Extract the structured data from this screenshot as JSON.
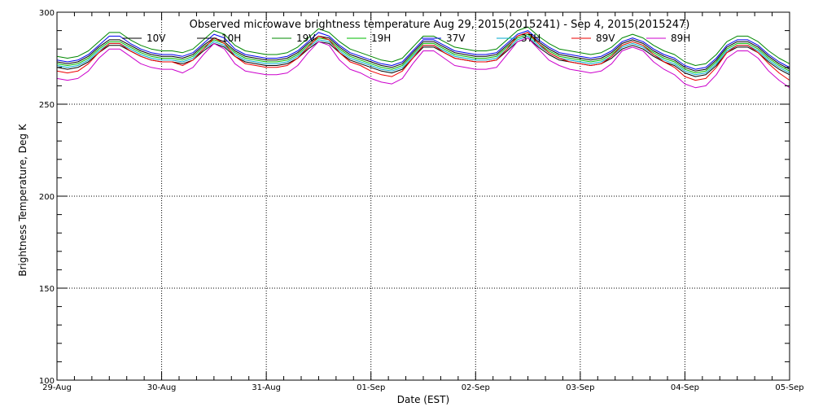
{
  "chart_data": {
    "type": "line",
    "title": "Observed microwave brightness temperature Aug 29, 2015(2015241) - Sep  4, 2015(2015247)",
    "xlabel": "Date (EST)",
    "ylabel": "Brightness Temperature, Deg K",
    "ylim": [
      100,
      300
    ],
    "xlim": [
      0,
      7
    ],
    "x_unit": "days from 29-Aug",
    "yticks": [
      100,
      150,
      200,
      250,
      300
    ],
    "xticks": [
      {
        "x": 0,
        "label": "29-Aug"
      },
      {
        "x": 1,
        "label": "30-Aug"
      },
      {
        "x": 2,
        "label": "31-Aug"
      },
      {
        "x": 3,
        "label": "01-Sep"
      },
      {
        "x": 4,
        "label": "02-Sep"
      },
      {
        "x": 5,
        "label": "03-Sep"
      },
      {
        "x": 6,
        "label": "04-Sep"
      },
      {
        "x": 7,
        "label": "05-Sep"
      }
    ],
    "grid": true,
    "legend_position": "top",
    "x": [
      0.0,
      0.1,
      0.2,
      0.3,
      0.4,
      0.5,
      0.6,
      0.7,
      0.8,
      0.9,
      1.0,
      1.1,
      1.2,
      1.3,
      1.4,
      1.5,
      1.6,
      1.7,
      1.8,
      1.9,
      2.0,
      2.1,
      2.2,
      2.3,
      2.4,
      2.5,
      2.6,
      2.7,
      2.8,
      2.9,
      3.0,
      3.1,
      3.2,
      3.3,
      3.4,
      3.5,
      3.6,
      3.7,
      3.8,
      3.9,
      4.0,
      4.1,
      4.2,
      4.3,
      4.4,
      4.5,
      4.6,
      4.7,
      4.8,
      4.9,
      5.0,
      5.1,
      5.2,
      5.3,
      5.4,
      5.5,
      5.6,
      5.7,
      5.8,
      5.9,
      6.0,
      6.1,
      6.2,
      6.3,
      6.4,
      6.5,
      6.6,
      6.7,
      6.8,
      6.9,
      7.0
    ],
    "series": [
      {
        "name": "10V",
        "color": "#000000",
        "values": [
          273,
          272,
          273,
          276,
          281,
          285,
          285,
          282,
          279,
          277,
          276,
          276,
          275,
          277,
          282,
          286,
          284,
          279,
          276,
          275,
          274,
          274,
          275,
          278,
          283,
          287,
          286,
          281,
          277,
          275,
          273,
          271,
          270,
          272,
          278,
          284,
          284,
          281,
          278,
          277,
          276,
          276,
          277,
          282,
          287,
          289,
          284,
          280,
          277,
          276,
          275,
          274,
          275,
          278,
          283,
          285,
          283,
          279,
          276,
          274,
          270,
          268,
          269,
          274,
          281,
          284,
          284,
          281,
          276,
          272,
          269
        ]
      },
      {
        "name": "10H",
        "color": "#000000",
        "values": [
          270,
          269,
          270,
          273,
          278,
          282,
          282,
          279,
          276,
          274,
          273,
          273,
          272,
          274,
          279,
          283,
          281,
          276,
          273,
          272,
          271,
          271,
          272,
          275,
          280,
          284,
          283,
          278,
          274,
          272,
          270,
          268,
          267,
          269,
          275,
          281,
          281,
          278,
          275,
          274,
          273,
          273,
          274,
          279,
          284,
          286,
          281,
          277,
          274,
          273,
          272,
          271,
          272,
          275,
          280,
          282,
          280,
          276,
          273,
          271,
          267,
          265,
          266,
          271,
          278,
          281,
          281,
          278,
          273,
          269,
          266
        ]
      },
      {
        "name": "19V",
        "color": "#008800",
        "values": [
          276,
          275,
          276,
          279,
          284,
          289,
          289,
          285,
          282,
          280,
          279,
          279,
          278,
          280,
          285,
          290,
          288,
          282,
          279,
          278,
          277,
          277,
          278,
          281,
          286,
          291,
          289,
          284,
          280,
          278,
          276,
          274,
          273,
          275,
          281,
          287,
          287,
          284,
          281,
          280,
          279,
          279,
          280,
          285,
          290,
          292,
          287,
          283,
          280,
          279,
          278,
          277,
          278,
          281,
          286,
          288,
          286,
          282,
          279,
          277,
          273,
          271,
          272,
          277,
          284,
          287,
          287,
          284,
          279,
          275,
          272
        ]
      },
      {
        "name": "19H",
        "color": "#00bb00",
        "values": [
          272,
          271,
          272,
          275,
          280,
          284,
          284,
          281,
          278,
          276,
          275,
          275,
          274,
          276,
          281,
          285,
          283,
          278,
          275,
          274,
          273,
          273,
          274,
          277,
          282,
          286,
          285,
          280,
          276,
          274,
          272,
          270,
          269,
          271,
          277,
          283,
          283,
          280,
          277,
          276,
          275,
          275,
          276,
          281,
          286,
          288,
          283,
          279,
          276,
          275,
          274,
          273,
          274,
          277,
          282,
          284,
          282,
          278,
          275,
          273,
          269,
          267,
          268,
          273,
          280,
          283,
          283,
          280,
          275,
          271,
          268
        ]
      },
      {
        "name": "37V",
        "color": "#0000ee",
        "values": [
          274,
          273,
          274,
          277,
          282,
          287,
          287,
          283,
          280,
          278,
          277,
          277,
          276,
          278,
          283,
          288,
          286,
          280,
          277,
          276,
          275,
          275,
          276,
          279,
          284,
          289,
          287,
          282,
          278,
          276,
          274,
          272,
          271,
          273,
          279,
          285,
          285,
          282,
          279,
          278,
          277,
          277,
          278,
          283,
          288,
          290,
          285,
          281,
          278,
          277,
          276,
          275,
          276,
          279,
          284,
          286,
          284,
          280,
          277,
          275,
          271,
          269,
          270,
          275,
          282,
          285,
          285,
          282,
          277,
          273,
          270
        ]
      },
      {
        "name": "37H",
        "color": "#00aacc",
        "values": [
          271,
          270,
          271,
          274,
          279,
          283,
          283,
          280,
          277,
          275,
          274,
          274,
          273,
          275,
          280,
          284,
          282,
          277,
          274,
          273,
          272,
          272,
          273,
          276,
          281,
          285,
          284,
          279,
          275,
          273,
          271,
          269,
          268,
          270,
          276,
          282,
          282,
          279,
          276,
          275,
          274,
          274,
          275,
          280,
          285,
          287,
          282,
          278,
          275,
          274,
          273,
          272,
          273,
          276,
          281,
          283,
          281,
          277,
          274,
          272,
          268,
          266,
          267,
          272,
          279,
          282,
          282,
          279,
          274,
          270,
          267
        ]
      },
      {
        "name": "89V",
        "color": "#ee0000",
        "values": [
          268,
          267,
          268,
          272,
          278,
          283,
          283,
          279,
          276,
          274,
          273,
          273,
          271,
          274,
          280,
          286,
          283,
          276,
          272,
          271,
          270,
          270,
          271,
          275,
          281,
          287,
          285,
          278,
          273,
          271,
          268,
          266,
          265,
          268,
          275,
          282,
          282,
          278,
          275,
          274,
          273,
          273,
          274,
          280,
          287,
          289,
          283,
          278,
          275,
          273,
          272,
          271,
          272,
          276,
          282,
          284,
          282,
          277,
          273,
          270,
          265,
          263,
          264,
          270,
          278,
          282,
          282,
          278,
          272,
          267,
          263
        ]
      },
      {
        "name": "89H",
        "color": "#cc00cc",
        "values": [
          264,
          263,
          264,
          268,
          275,
          280,
          280,
          276,
          272,
          270,
          269,
          269,
          267,
          270,
          277,
          283,
          280,
          272,
          268,
          267,
          266,
          266,
          267,
          271,
          278,
          284,
          282,
          274,
          269,
          267,
          264,
          262,
          261,
          264,
          272,
          279,
          279,
          275,
          271,
          270,
          269,
          269,
          270,
          277,
          284,
          286,
          280,
          274,
          271,
          269,
          268,
          267,
          268,
          272,
          279,
          281,
          279,
          273,
          269,
          266,
          261,
          259,
          260,
          266,
          275,
          279,
          279,
          275,
          268,
          263,
          259
        ]
      }
    ]
  }
}
